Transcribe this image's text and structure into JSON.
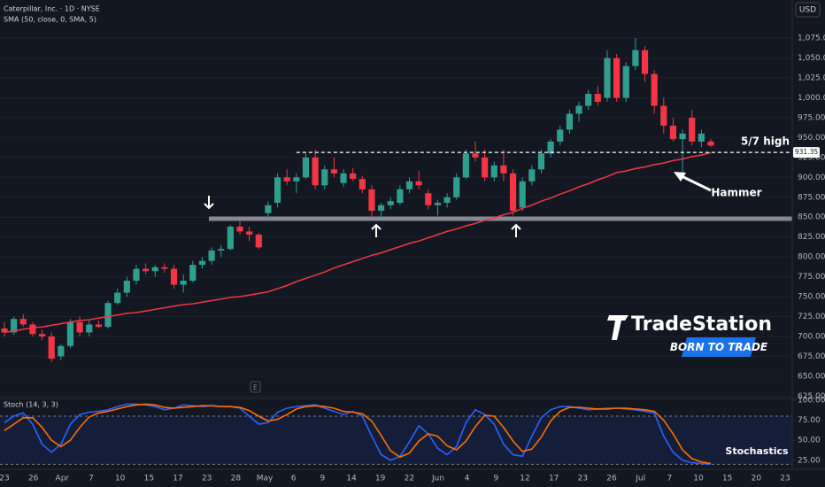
{
  "chart_data": [
    {
      "type": "candlestick",
      "title": "Caterpillar, Inc. · 1D · NYSE",
      "currency": "USD",
      "up_color": "#2f9e8f",
      "down_color": "#f23645",
      "grid": true,
      "ylim": [
        622,
        1123
      ],
      "yticks": [
        {
          "value": 625,
          "label": "625.00"
        },
        {
          "value": 650,
          "label": "650.00"
        },
        {
          "value": 675,
          "label": "675.00"
        },
        {
          "value": 700,
          "label": "700.00"
        },
        {
          "value": 725,
          "label": "725.00"
        },
        {
          "value": 750,
          "label": "750.00"
        },
        {
          "value": 775,
          "label": "775.00"
        },
        {
          "value": 800,
          "label": "800.00"
        },
        {
          "value": 825,
          "label": "825.00"
        },
        {
          "value": 850,
          "label": "850.00"
        },
        {
          "value": 875,
          "label": "875.00"
        },
        {
          "value": 900,
          "label": "900.00"
        },
        {
          "value": 925,
          "label": "925.00"
        },
        {
          "value": 950,
          "label": "950.00"
        },
        {
          "value": 975,
          "label": "975.00"
        },
        {
          "value": 1000,
          "label": "1,000.00"
        },
        {
          "value": 1025,
          "label": "1,025.00"
        },
        {
          "value": 1050,
          "label": "1,050.00"
        },
        {
          "value": 1075,
          "label": "1,075.00"
        }
      ],
      "x_labels": [
        "23",
        "26",
        "Apr",
        "7",
        "10",
        "15",
        "17",
        "23",
        "28",
        "May",
        "6",
        "9",
        "14",
        "19",
        "22",
        "Jun",
        "4",
        "9",
        "12",
        "17",
        "23",
        "26",
        "Jul",
        "7",
        "10",
        "15",
        "20",
        "23"
      ],
      "open": [
        710,
        705,
        722,
        715,
        703,
        700,
        675,
        688,
        718,
        705,
        715,
        712,
        742,
        755,
        770,
        785,
        782,
        787,
        785,
        765,
        770,
        790,
        795,
        808,
        810,
        838,
        832,
        828,
        855,
        868,
        900,
        895,
        900,
        925,
        890,
        910,
        893,
        905,
        898,
        885,
        858,
        865,
        868,
        885,
        895,
        880,
        865,
        868,
        875,
        900,
        930,
        925,
        900,
        915,
        905,
        862,
        895,
        910,
        930,
        945,
        960,
        980,
        990,
        1005,
        1000,
        1050,
        1000,
        1040,
        1060,
        1030,
        990,
        965,
        948,
        975,
        945,
        945
      ],
      "high": [
        718,
        725,
        728,
        718,
        708,
        705,
        690,
        722,
        725,
        720,
        720,
        745,
        760,
        775,
        790,
        792,
        790,
        792,
        790,
        778,
        795,
        800,
        812,
        815,
        840,
        845,
        838,
        830,
        870,
        905,
        910,
        905,
        930,
        935,
        915,
        925,
        910,
        912,
        902,
        890,
        868,
        875,
        890,
        900,
        908,
        885,
        872,
        880,
        905,
        935,
        945,
        935,
        920,
        935,
        910,
        900,
        915,
        935,
        948,
        965,
        985,
        995,
        1010,
        1015,
        1060,
        1055,
        1045,
        1075,
        1065,
        1035,
        1000,
        975,
        960,
        985,
        960,
        948
      ],
      "low": [
        700,
        702,
        712,
        700,
        695,
        668,
        670,
        685,
        700,
        700,
        710,
        710,
        740,
        750,
        765,
        778,
        775,
        780,
        760,
        755,
        768,
        785,
        790,
        800,
        808,
        828,
        820,
        810,
        848,
        862,
        890,
        880,
        898,
        885,
        885,
        900,
        888,
        895,
        880,
        850,
        850,
        860,
        865,
        880,
        885,
        860,
        852,
        862,
        872,
        898,
        920,
        895,
        895,
        895,
        852,
        858,
        890,
        905,
        925,
        940,
        955,
        970,
        985,
        990,
        995,
        995,
        995,
        1035,
        1020,
        980,
        955,
        945,
        905,
        940,
        938,
        938
      ],
      "close": [
        705,
        722,
        715,
        703,
        700,
        672,
        688,
        718,
        705,
        715,
        712,
        742,
        755,
        770,
        785,
        782,
        787,
        785,
        765,
        770,
        790,
        795,
        808,
        810,
        838,
        832,
        828,
        812,
        865,
        900,
        895,
        900,
        925,
        890,
        910,
        905,
        905,
        898,
        885,
        858,
        865,
        870,
        885,
        895,
        890,
        865,
        868,
        875,
        900,
        930,
        925,
        900,
        915,
        905,
        858,
        895,
        910,
        930,
        945,
        960,
        980,
        990,
        1005,
        995,
        1050,
        1000,
        1040,
        1060,
        1030,
        990,
        965,
        948,
        955,
        945,
        955,
        940
      ],
      "series": [
        {
          "name": "SMA (50, close, 0, SMA, 5)",
          "color": "#f23645",
          "values": [
            705,
            707,
            709,
            711,
            712,
            714,
            716,
            718,
            720,
            721,
            723,
            725,
            727,
            729,
            730,
            732,
            734,
            736,
            738,
            740,
            741,
            743,
            745,
            747,
            749,
            750,
            752,
            754,
            756,
            760,
            764,
            769,
            773,
            777,
            781,
            786,
            790,
            794,
            798,
            802,
            805,
            809,
            813,
            817,
            820,
            824,
            828,
            832,
            835,
            839,
            842,
            846,
            849,
            853,
            856,
            861,
            865,
            870,
            874,
            879,
            883,
            888,
            892,
            897,
            901,
            906,
            908,
            911,
            913,
            916,
            918,
            921,
            923,
            926,
            928,
            931
          ]
        }
      ],
      "level": {
        "label": "5/7 high",
        "value": 931.35
      },
      "support": 848,
      "annotation": "Hammer",
      "earnings_marker": "E"
    },
    {
      "type": "line",
      "title": "Stoch (14, 3, 3)",
      "annotation": "Stochastics",
      "ylim": [
        16,
        101
      ],
      "yticks": [
        {
          "value": 100,
          "label": "100.00"
        },
        {
          "value": 75,
          "label": "75.00"
        },
        {
          "value": 50,
          "label": "50.00"
        },
        {
          "value": 25,
          "label": "25.00"
        }
      ],
      "bands": [
        80,
        20
      ],
      "band_color": "#2962ff",
      "series": [
        {
          "color": "#2962ff",
          "values": [
            72,
            80,
            84,
            70,
            45,
            35,
            45,
            70,
            82,
            85,
            86,
            88,
            92,
            95,
            95,
            94,
            92,
            88,
            90,
            94,
            93,
            92,
            93,
            92,
            92,
            90,
            80,
            70,
            72,
            85,
            90,
            92,
            93,
            94,
            90,
            86,
            82,
            86,
            80,
            55,
            32,
            25,
            30,
            48,
            68,
            58,
            40,
            32,
            42,
            72,
            88,
            82,
            70,
            45,
            32,
            30,
            55,
            78,
            88,
            92,
            92,
            90,
            88,
            89,
            90,
            90,
            89,
            88,
            86,
            84,
            55,
            35,
            25,
            22,
            21,
            20
          ]
        },
        {
          "color": "#ff6d00",
          "values": [
            62,
            70,
            78,
            78,
            66,
            50,
            42,
            50,
            66,
            79,
            84,
            86,
            89,
            92,
            94,
            95,
            94,
            91,
            90,
            91,
            92,
            93,
            93,
            92,
            92,
            91,
            87,
            80,
            74,
            76,
            82,
            89,
            92,
            93,
            92,
            90,
            86,
            85,
            83,
            74,
            56,
            37,
            29,
            34,
            49,
            58,
            55,
            43,
            38,
            49,
            67,
            81,
            80,
            66,
            49,
            36,
            39,
            54,
            74,
            86,
            91,
            91,
            90,
            89,
            89,
            90,
            90,
            89,
            88,
            86,
            75,
            58,
            38,
            27,
            23,
            21
          ]
        }
      ]
    }
  ],
  "branding": {
    "name": "TradeStation",
    "tagline": "BORN TO TRADE"
  }
}
